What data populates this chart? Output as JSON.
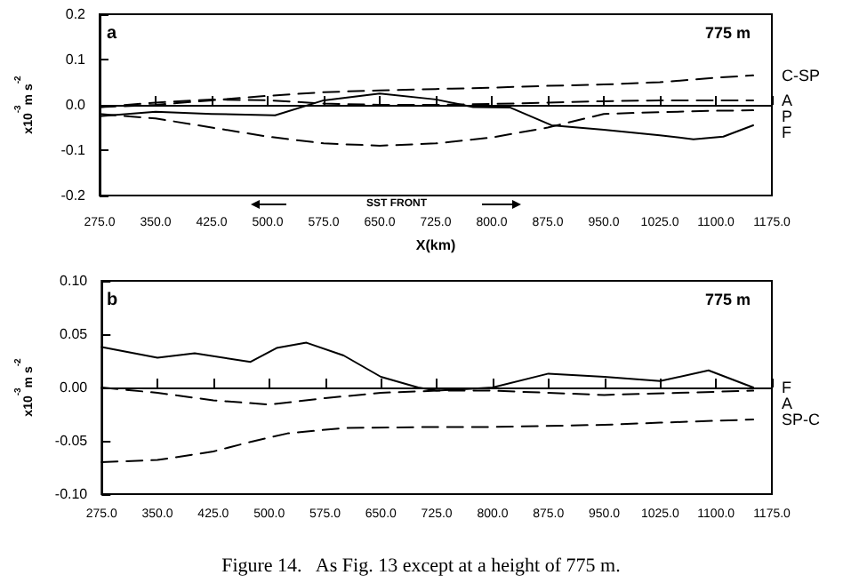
{
  "chart_data": [
    {
      "type": "line",
      "xlabel": "X(km)",
      "ylabel": "x10$^{-3}$m s$^{-2}$",
      "xlim": [
        275,
        1175
      ],
      "ylim": [
        -0.2,
        0.2
      ],
      "xticks": [
        {
          "value": 275,
          "label": "275.0"
        },
        {
          "value": 350,
          "label": "350.0"
        },
        {
          "value": 425,
          "label": "425.0"
        },
        {
          "value": 500,
          "label": "500.0"
        },
        {
          "value": 575,
          "label": "575.0"
        },
        {
          "value": 650,
          "label": "650.0"
        },
        {
          "value": 725,
          "label": "725.0"
        },
        {
          "value": 800,
          "label": "800.0"
        },
        {
          "value": 875,
          "label": "875.0"
        },
        {
          "value": 950,
          "label": "950.0"
        },
        {
          "value": 1025,
          "label": "1025.0"
        },
        {
          "value": 1100,
          "label": "1100.0"
        },
        {
          "value": 1175,
          "label": "1175.0"
        }
      ],
      "yticks": [
        -0.2,
        -0.1,
        {
          "value": 0,
          "label": "0.0"
        },
        0.1,
        0.2
      ],
      "series": [
        {
          "name": "C-SP",
          "color": "#000000",
          "line_style": "dashed",
          "x": [
            275,
            350,
            425,
            500,
            575,
            650,
            725,
            800,
            875,
            950,
            1025,
            1100,
            1150
          ],
          "values": [
            -0.005,
            0.0,
            0.01,
            0.02,
            0.028,
            0.032,
            0.035,
            0.038,
            0.042,
            0.045,
            0.05,
            0.06,
            0.065
          ]
        },
        {
          "name": "A",
          "color": "#000000",
          "line_style": "dashed",
          "x": [
            275,
            350,
            425,
            500,
            575,
            650,
            725,
            800,
            875,
            950,
            1025,
            1100,
            1150
          ],
          "values": [
            -0.005,
            0.005,
            0.012,
            0.01,
            0.003,
            0.0,
            0.0,
            0.002,
            0.005,
            0.008,
            0.01,
            0.01,
            0.01
          ]
        },
        {
          "name": "F",
          "color": "#000000",
          "line_style": "solid",
          "x": [
            275,
            350,
            425,
            510,
            575,
            650,
            725,
            775,
            825,
            880,
            950,
            1025,
            1070,
            1110,
            1150
          ],
          "values": [
            -0.025,
            -0.015,
            -0.02,
            -0.023,
            0.01,
            0.025,
            0.012,
            -0.005,
            -0.006,
            -0.045,
            -0.055,
            -0.067,
            -0.076,
            -0.07,
            -0.045
          ]
        },
        {
          "name": "P",
          "color": "#000000",
          "line_style": "dashed",
          "x": [
            275,
            350,
            425,
            500,
            575,
            650,
            725,
            800,
            875,
            950,
            1025,
            1100,
            1150
          ],
          "values": [
            -0.02,
            -0.03,
            -0.05,
            -0.07,
            -0.085,
            -0.09,
            -0.085,
            -0.072,
            -0.05,
            -0.02,
            -0.016,
            -0.013,
            -0.012
          ]
        }
      ],
      "annotations": [
        "a",
        "775 m",
        "SST FRONT"
      ]
    },
    {
      "type": "line",
      "ylabel": "x10$^{-3}$m s$^{-2}$",
      "xlim": [
        275,
        1175
      ],
      "ylim": [
        -0.1,
        0.1
      ],
      "xticks": [
        {
          "value": 275,
          "label": "275.0"
        },
        {
          "value": 350,
          "label": "350.0"
        },
        {
          "value": 425,
          "label": "425.0"
        },
        {
          "value": 500,
          "label": "500.0"
        },
        {
          "value": 575,
          "label": "575.0"
        },
        {
          "value": 650,
          "label": "650.0"
        },
        {
          "value": 725,
          "label": "725.0"
        },
        {
          "value": 800,
          "label": "800.0"
        },
        {
          "value": 875,
          "label": "875.0"
        },
        {
          "value": 950,
          "label": "950.0"
        },
        {
          "value": 1025,
          "label": "1025.0"
        },
        {
          "value": 1100,
          "label": "1100.0"
        },
        {
          "value": 1175,
          "label": "1175.0"
        }
      ],
      "yticks": [
        {
          "value": -0.1,
          "label": "-0.10"
        },
        -0.05,
        {
          "value": 0,
          "label": "0.00"
        },
        0.05,
        {
          "value": 0.1,
          "label": "0.10"
        }
      ],
      "series": [
        {
          "name": "F",
          "color": "#000000",
          "line_style": "solid",
          "x": [
            275,
            350,
            400,
            475,
            510,
            550,
            600,
            650,
            700,
            725,
            800,
            875,
            950,
            1025,
            1090,
            1150
          ],
          "values": [
            0.038,
            0.028,
            0.032,
            0.024,
            0.037,
            0.042,
            0.03,
            0.01,
            0.0,
            -0.003,
            0.0,
            0.013,
            0.01,
            0.006,
            0.016,
            0.0
          ]
        },
        {
          "name": "A",
          "color": "#000000",
          "line_style": "dashed",
          "x": [
            275,
            350,
            425,
            500,
            575,
            650,
            725,
            800,
            950,
            1150
          ],
          "values": [
            0.0,
            -0.005,
            -0.012,
            -0.016,
            -0.01,
            -0.005,
            -0.003,
            -0.003,
            -0.007,
            -0.003
          ]
        },
        {
          "name": "SP-C",
          "color": "#000000",
          "line_style": "dashed",
          "x": [
            275,
            350,
            425,
            475,
            525,
            600,
            725,
            800,
            950,
            1025,
            1150
          ],
          "values": [
            -0.07,
            -0.068,
            -0.06,
            -0.051,
            -0.043,
            -0.038,
            -0.037,
            -0.037,
            -0.035,
            -0.033,
            -0.03
          ]
        }
      ],
      "annotations": [
        "b",
        "775 m",
        "Figure 14.   As Fig. 13 except at a height of 775 m."
      ]
    }
  ]
}
